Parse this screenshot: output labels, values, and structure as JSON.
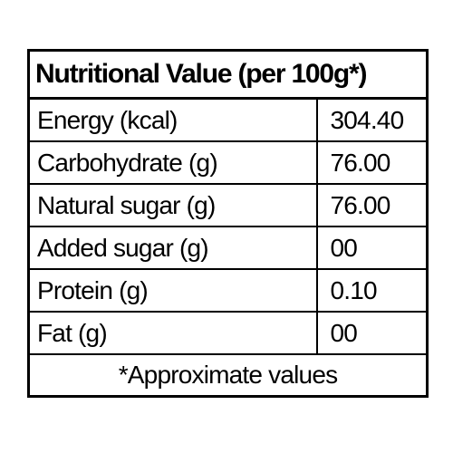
{
  "table": {
    "title": "Nutritional Value (per 100g*)",
    "rows": [
      {
        "nutrient": "Energy (kcal)",
        "value": "304.40"
      },
      {
        "nutrient": "Carbohydrate (g)",
        "value": "76.00"
      },
      {
        "nutrient": "Natural sugar (g)",
        "value": "76.00"
      },
      {
        "nutrient": "Added sugar (g)",
        "value": "00"
      },
      {
        "nutrient": "Protein (g)",
        "value": "0.10"
      },
      {
        "nutrient": "Fat (g)",
        "value": "00"
      }
    ],
    "footnote": "*Approximate values"
  }
}
